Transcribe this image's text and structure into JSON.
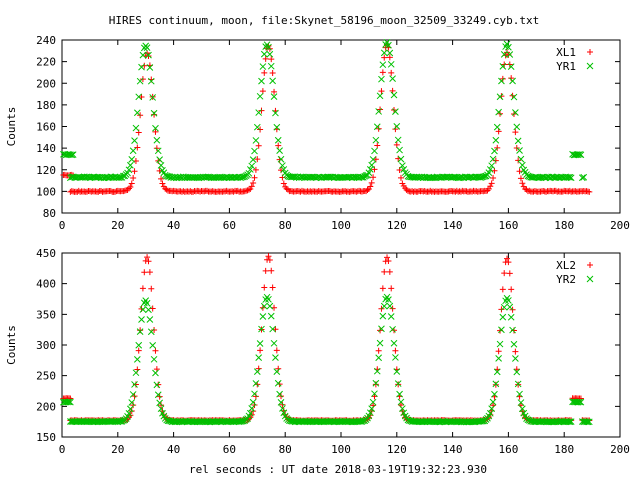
{
  "title": "HIRES continuum, moon, file:Skynet_58196_moon_32509_33249.cyb.txt",
  "xlabel": "rel seconds : UT date 2018-03-19T19:32:23.930",
  "colors": {
    "red": "#ff0000",
    "green": "#00c000",
    "axis": "#000000"
  },
  "chart_data": [
    {
      "type": "scatter",
      "ylabel": "Counts",
      "xlim": [
        0,
        200
      ],
      "ylim": [
        80,
        240
      ],
      "xticks": [
        0,
        20,
        40,
        60,
        80,
        100,
        120,
        140,
        160,
        180,
        200
      ],
      "yticks": [
        80,
        100,
        120,
        140,
        160,
        180,
        200,
        220,
        240
      ],
      "legend_position": "top-right",
      "series": [
        {
          "name": "XL1",
          "marker": "plus",
          "color": "#ff0000",
          "pre": {
            "x": [
              0.5,
              4
            ],
            "y": 115
          },
          "baseline": 100,
          "peak_x": [
            30.5,
            74,
            116.5,
            159.5
          ],
          "peak_y": [
            228,
            235,
            236,
            229
          ],
          "peak_sigma": 2.3,
          "post": {
            "x": [
              183,
              188
            ],
            "y": 100
          },
          "x_range": [
            3,
            189
          ],
          "dt": 0.5
        },
        {
          "name": "YR1",
          "marker": "cross",
          "color": "#00c000",
          "pre": {
            "x": [
              0.5,
              4
            ],
            "y": 134
          },
          "baseline": 113,
          "peak_x": [
            30,
            73.5,
            116.5,
            159.5
          ],
          "peak_y": [
            235,
            236,
            238,
            236
          ],
          "peak_sigma": 2.5,
          "post": {
            "x": [
              183,
              186
            ],
            "y": 134
          },
          "x_range": [
            3,
            187
          ],
          "dt": 0.5
        }
      ]
    },
    {
      "type": "scatter",
      "ylabel": "Counts",
      "xlim": [
        0,
        200
      ],
      "ylim": [
        150,
        450
      ],
      "xticks": [
        0,
        20,
        40,
        60,
        80,
        100,
        120,
        140,
        160,
        180,
        200
      ],
      "yticks": [
        150,
        200,
        250,
        300,
        350,
        400,
        450
      ],
      "legend_position": "top-right",
      "series": [
        {
          "name": "XL2",
          "marker": "plus",
          "color": "#ff0000",
          "pre": {
            "x": [
              0.5,
              3
            ],
            "y": 213
          },
          "baseline": 177,
          "peak_x": [
            30.5,
            74,
            116.5,
            159.5
          ],
          "peak_y": [
            443,
            445,
            443,
            441
          ],
          "peak_sigma": 2.3,
          "post": {
            "x": [
              183,
              186
            ],
            "y": 213
          },
          "x_range": [
            3,
            189
          ],
          "dt": 0.5
        },
        {
          "name": "YR2",
          "marker": "cross",
          "color": "#00c000",
          "pre": {
            "x": [
              0.5,
              3
            ],
            "y": 207
          },
          "baseline": 175,
          "peak_x": [
            30,
            73.5,
            116.5,
            159.5
          ],
          "peak_y": [
            372,
            378,
            378,
            376
          ],
          "peak_sigma": 2.6,
          "post": {
            "x": [
              183,
              186
            ],
            "y": 207
          },
          "x_range": [
            3,
            189
          ],
          "dt": 0.5
        }
      ]
    }
  ]
}
